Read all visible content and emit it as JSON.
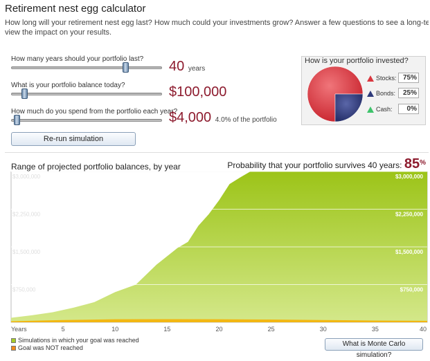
{
  "header": {
    "title": "Retirement nest egg calculator",
    "intro_line1": "How long will your retirement nest egg last? How much could your investments grow? Answer a few questions to see a long-term projection. Then try n",
    "intro_line2": "view the impact on your results."
  },
  "inputs": {
    "years": {
      "label": "How many years should your portfolio last?",
      "value": "40",
      "unit": "years",
      "slider_fraction": 0.77
    },
    "balance": {
      "label": "What is your portfolio balance today?",
      "value": "$100,000",
      "slider_fraction": 0.07
    },
    "spend": {
      "label": "How much do you spend from the portfolio each year?",
      "value": "$4,000",
      "note": "4.0% of the portfolio",
      "slider_fraction": 0.02
    }
  },
  "rerun_button": "Re-run simulation",
  "allocation": {
    "title": "How is your portfolio invested?",
    "items": [
      {
        "name": "Stocks:",
        "value": "75%",
        "color": "#d9373f"
      },
      {
        "name": "Bonds:",
        "value": "25%",
        "color": "#2e3a7a"
      },
      {
        "name": "Cash:",
        "value": "0%",
        "color": "#3ec36b"
      }
    ]
  },
  "chart_header": {
    "title": "Range of projected portfolio balances, by year",
    "probability_label": "Probability that your portfolio survives 40 years:",
    "probability_value": "85",
    "probability_unit": "%"
  },
  "chart_data": {
    "type": "area",
    "x_label": "Years",
    "x_ticks": [
      5,
      10,
      15,
      20,
      25,
      30,
      35,
      40
    ],
    "y_ticks": [
      {
        "value": 750000,
        "label": "$750,000"
      },
      {
        "value": 1500000,
        "label": "$1,500,000"
      },
      {
        "value": 2250000,
        "label": "$2,250,000"
      },
      {
        "value": 3000000,
        "label": "$3,000,000"
      }
    ],
    "xlim": [
      0,
      40
    ],
    "ylim": [
      0,
      3000000
    ],
    "grid": true,
    "series": [
      {
        "name": "Simulations in which your goal was reached",
        "color": "#9cc418",
        "x": [
          0,
          2,
          4,
          6,
          8,
          10,
          12,
          14,
          16,
          17,
          18,
          19,
          20,
          21,
          22,
          23,
          40
        ],
        "values": [
          90000,
          140000,
          200000,
          290000,
          400000,
          600000,
          750000,
          1150000,
          1480000,
          1600000,
          1920000,
          2150000,
          2430000,
          2750000,
          2880000,
          3000000,
          3000000
        ]
      },
      {
        "name": "Goal was NOT reached",
        "color": "#f2b713",
        "x": [
          0,
          5,
          10,
          15,
          20,
          25,
          30,
          35,
          40
        ],
        "values": [
          20000,
          45000,
          60000,
          62000,
          60000,
          55000,
          45000,
          35000,
          30000
        ]
      }
    ]
  },
  "legend": [
    {
      "label": "Simulations in which your goal was reached",
      "color": "#a7cc27"
    },
    {
      "label": "Goal was NOT reached",
      "color": "#f08a1c"
    }
  ],
  "monte_carlo_button": "What is Monte Carlo simulation?"
}
